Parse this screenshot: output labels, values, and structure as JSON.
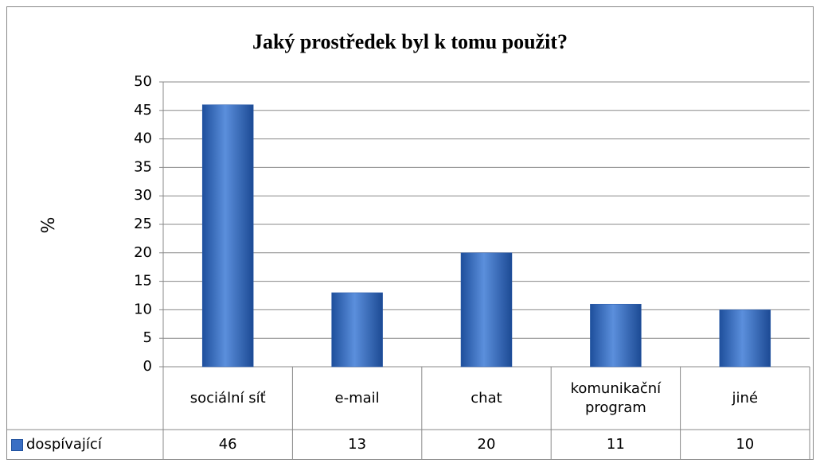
{
  "chart_data": {
    "type": "bar",
    "title": "Jaký prostředek byl k tomu použit?",
    "y_label": "%",
    "categories": [
      "sociální síť",
      "e-mail",
      "chat",
      "komunikační program",
      "jiné"
    ],
    "series": [
      {
        "name": "dospívající",
        "color": "#3a6fc4",
        "values": [
          46,
          13,
          20,
          11,
          10
        ]
      }
    ],
    "ylim": [
      0,
      50
    ],
    "yticks": [
      0,
      5,
      10,
      15,
      20,
      25,
      30,
      35,
      40,
      45,
      50
    ],
    "grid": true
  }
}
